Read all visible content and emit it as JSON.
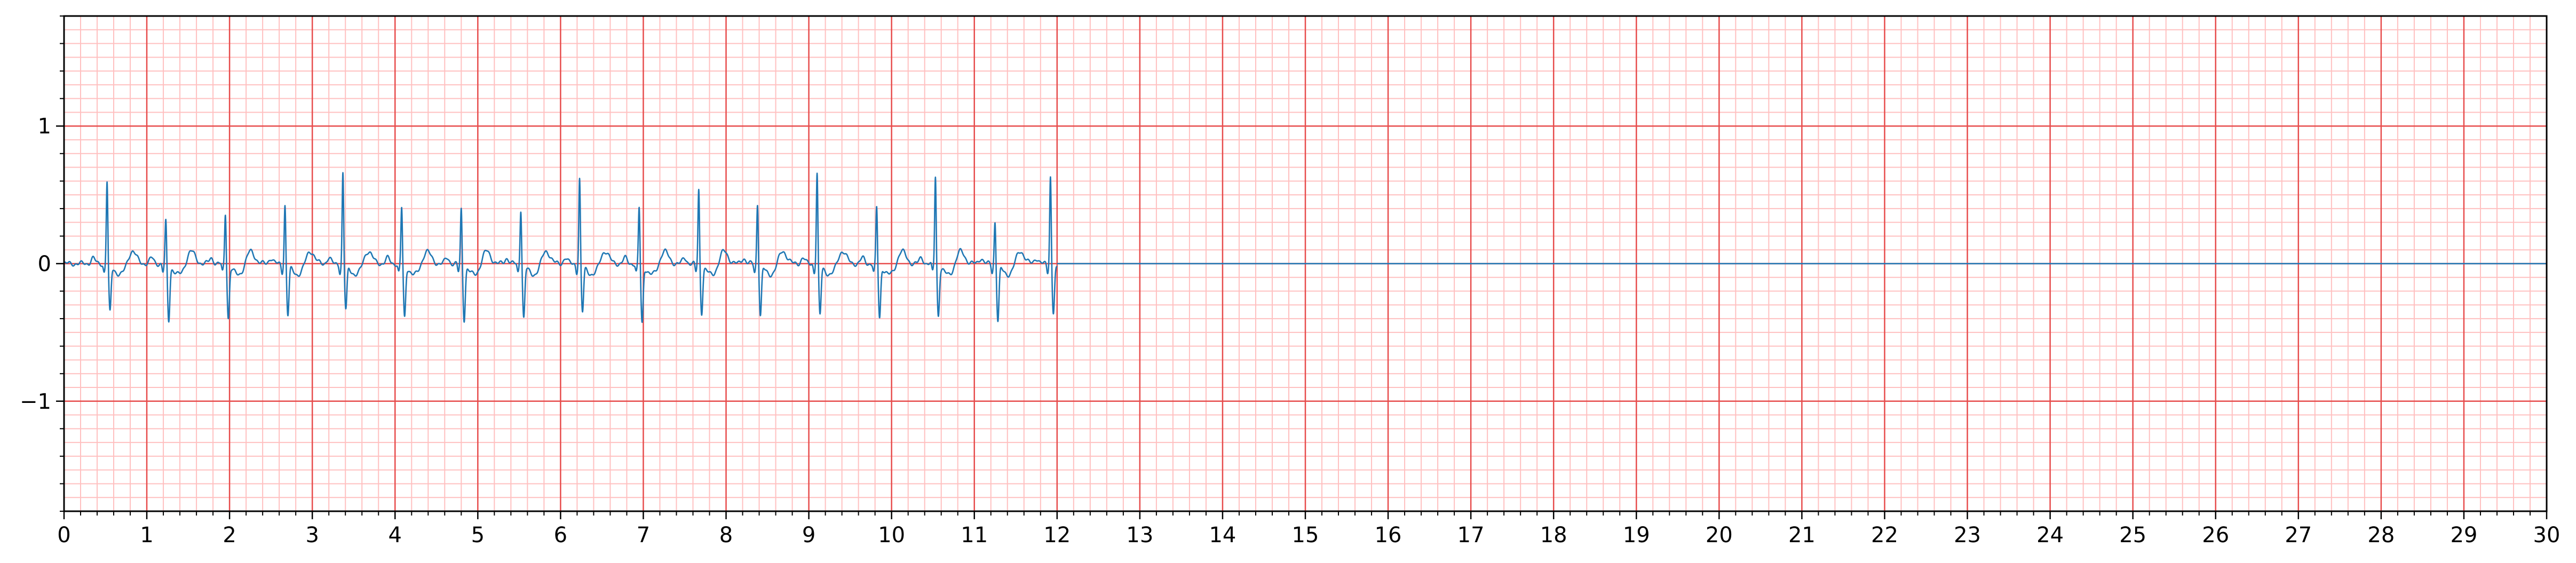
{
  "chart_data": {
    "type": "line",
    "title": "",
    "xlabel": "",
    "ylabel": "",
    "xlim": [
      0,
      30
    ],
    "ylim": [
      -1.8,
      1.8
    ],
    "xticks": [
      0,
      1,
      2,
      3,
      4,
      5,
      6,
      7,
      8,
      9,
      10,
      11,
      12,
      13,
      14,
      15,
      16,
      17,
      18,
      19,
      20,
      21,
      22,
      23,
      24,
      25,
      26,
      27,
      28,
      29,
      30
    ],
    "xtick_labels": [
      "0",
      "1",
      "2",
      "3",
      "4",
      "5",
      "6",
      "7",
      "8",
      "9",
      "10",
      "11",
      "12",
      "13",
      "14",
      "15",
      "16",
      "17",
      "18",
      "19",
      "20",
      "21",
      "22",
      "23",
      "24",
      "25",
      "26",
      "27",
      "28",
      "29",
      "30"
    ],
    "yticks": [
      -1,
      0,
      1
    ],
    "ytick_labels": [
      "−1",
      "0",
      "1"
    ],
    "grid": true,
    "grid_major_color": "#e74c4c",
    "grid_minor_color": "#ffc0c0",
    "line_color": "#1f77b4",
    "signal_end_x": 12.0,
    "beats": [
      {
        "x": 0.52,
        "r": 0.56,
        "s": -0.34
      },
      {
        "x": 1.23,
        "r": 0.27,
        "s": -0.4
      },
      {
        "x": 1.95,
        "r": 0.33,
        "s": -0.38
      },
      {
        "x": 2.67,
        "r": 0.39,
        "s": -0.36
      },
      {
        "x": 3.37,
        "r": 0.62,
        "s": -0.32
      },
      {
        "x": 4.08,
        "r": 0.37,
        "s": -0.38
      },
      {
        "x": 4.8,
        "r": 0.36,
        "s": -0.39
      },
      {
        "x": 5.52,
        "r": 0.36,
        "s": -0.38
      },
      {
        "x": 6.23,
        "r": 0.58,
        "s": -0.34
      },
      {
        "x": 6.95,
        "r": 0.37,
        "s": -0.42
      },
      {
        "x": 7.67,
        "r": 0.5,
        "s": -0.34
      },
      {
        "x": 8.38,
        "r": 0.4,
        "s": -0.36
      },
      {
        "x": 9.1,
        "r": 0.62,
        "s": -0.36
      },
      {
        "x": 9.82,
        "r": 0.37,
        "s": -0.38
      },
      {
        "x": 10.53,
        "r": 0.6,
        "s": -0.36
      },
      {
        "x": 11.25,
        "r": 0.27,
        "s": -0.4
      },
      {
        "x": 11.92,
        "r": 0.6,
        "s": -0.34
      }
    ]
  }
}
